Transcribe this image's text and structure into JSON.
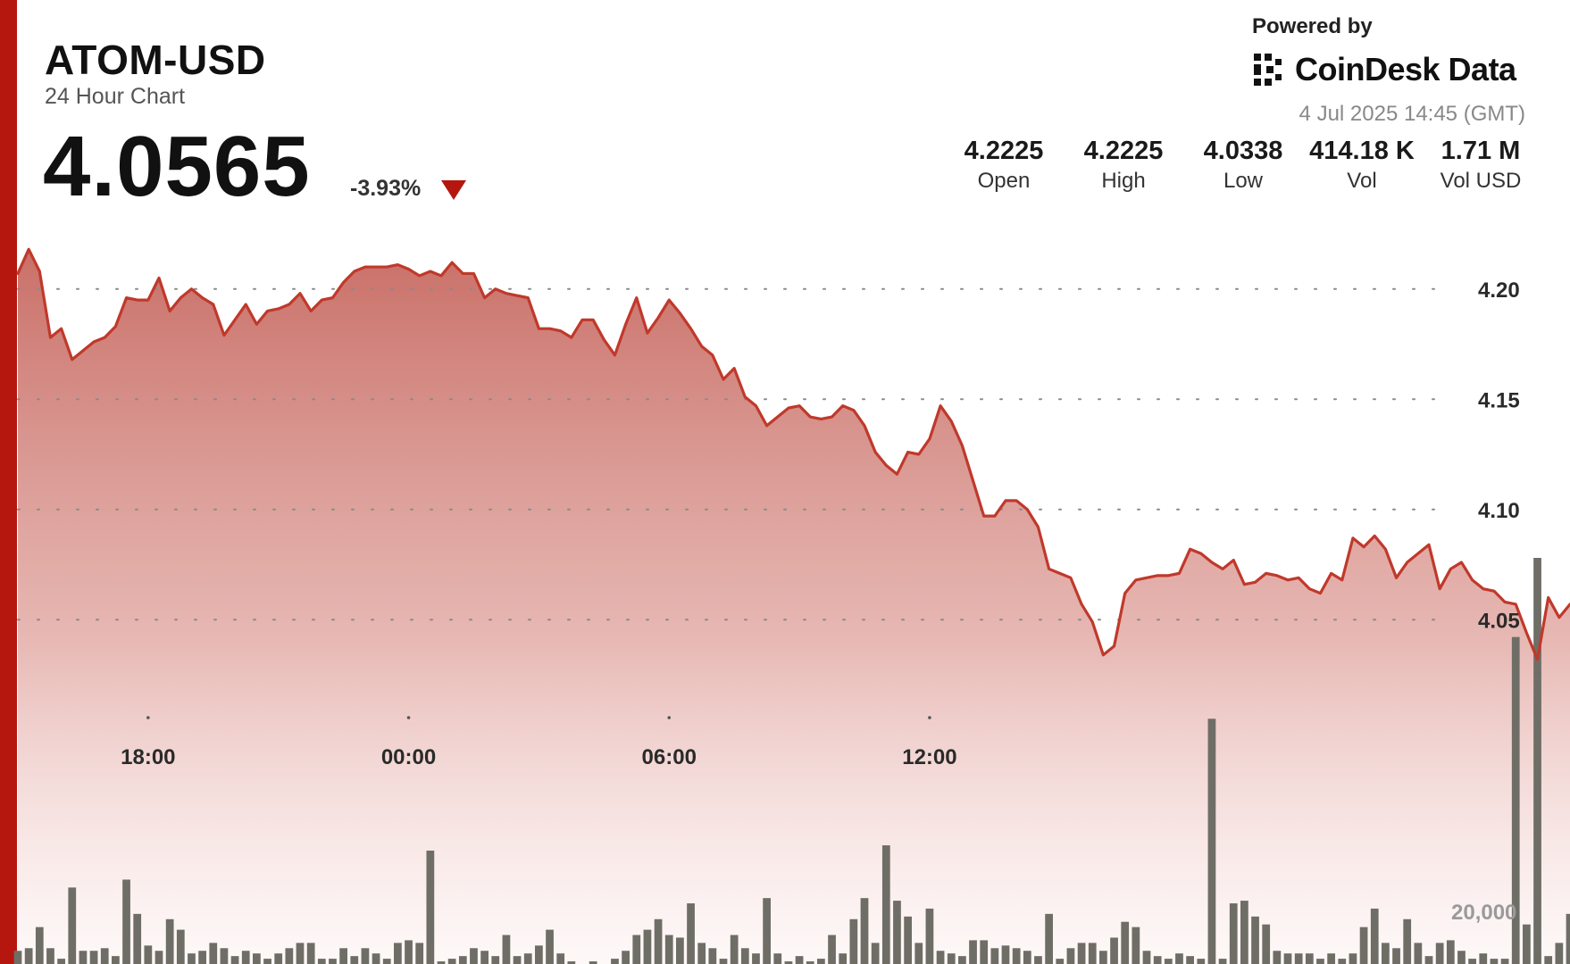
{
  "header": {
    "pair": "ATOM-USD",
    "subtitle": "24 Hour Chart",
    "price": "4.0565",
    "change": "-3.93%",
    "powered_by": "Powered by",
    "brand": "CoinDesk Data",
    "timestamp": "4 Jul 2025 14:45 (GMT)"
  },
  "stats": [
    {
      "value": "4.2225",
      "label": "Open"
    },
    {
      "value": "4.2225",
      "label": "High"
    },
    {
      "value": "4.0338",
      "label": "Low"
    },
    {
      "value": "414.18 K",
      "label": "Vol"
    },
    {
      "value": "1.71 M",
      "label": "Vol USD"
    }
  ],
  "colors": {
    "accent": "#b5170f",
    "line": "#c0392b",
    "area_top": "#c97068",
    "volume_bar": "#6f6e66"
  },
  "chart_data": {
    "type": "area",
    "series": [
      {
        "values": [
          4.207,
          4.218,
          4.208,
          4.178,
          4.182,
          4.168,
          4.172,
          4.176,
          4.178,
          4.183,
          4.196,
          4.195,
          4.195,
          4.205,
          4.19,
          4.196,
          4.2,
          4.196,
          4.193,
          4.179,
          4.186,
          4.193,
          4.184,
          4.19,
          4.191,
          4.193,
          4.198,
          4.19,
          4.195,
          4.196,
          4.203,
          4.208,
          4.21,
          4.21,
          4.21,
          4.211,
          4.209,
          4.206,
          4.208,
          4.206,
          4.212,
          4.207,
          4.207,
          4.196,
          4.2,
          4.198,
          4.197,
          4.196,
          4.182,
          4.182,
          4.181,
          4.178,
          4.186,
          4.186,
          4.177,
          4.17,
          4.184,
          4.196,
          4.18,
          4.187,
          4.195,
          4.189,
          4.182,
          4.174,
          4.17,
          4.159,
          4.164,
          4.151,
          4.147,
          4.138,
          4.142,
          4.146,
          4.147,
          4.142,
          4.141,
          4.142,
          4.147,
          4.145,
          4.138,
          4.126,
          4.12,
          4.116,
          4.126,
          4.125,
          4.132,
          4.147,
          4.14,
          4.129,
          4.113,
          4.097,
          4.097,
          4.104,
          4.104,
          4.1,
          4.092,
          4.073,
          4.071,
          4.069,
          4.057,
          4.049,
          4.034,
          4.038,
          4.062,
          4.068,
          4.069,
          4.07,
          4.07,
          4.071,
          4.082,
          4.08,
          4.076,
          4.073,
          4.077,
          4.066,
          4.067,
          4.071,
          4.07,
          4.068,
          4.069,
          4.064,
          4.062,
          4.071,
          4.068,
          4.087,
          4.083,
          4.088,
          4.082,
          4.069,
          4.076,
          4.08,
          4.084,
          4.064,
          4.073,
          4.076,
          4.068,
          4.064,
          4.063,
          4.058,
          4.057,
          4.044,
          4.032,
          4.06,
          4.051,
          4.057
        ]
      }
    ],
    "volume": [
      5000,
      6000,
      14000,
      6000,
      2000,
      29000,
      5000,
      5000,
      6000,
      3000,
      32000,
      19000,
      7000,
      5000,
      17000,
      13000,
      4000,
      5000,
      8000,
      6000,
      3000,
      5000,
      4000,
      2000,
      4000,
      6000,
      8000,
      8000,
      2000,
      2000,
      6000,
      3000,
      6000,
      4000,
      2000,
      8000,
      9000,
      8000,
      43000,
      1000,
      2000,
      3000,
      6000,
      5000,
      3000,
      11000,
      3000,
      4000,
      7000,
      13000,
      4000,
      1000,
      0,
      1000,
      0,
      2000,
      5000,
      11000,
      13000,
      17000,
      11000,
      10000,
      23000,
      8000,
      6000,
      2000,
      11000,
      6000,
      4000,
      25000,
      4000,
      1000,
      3000,
      1000,
      2000,
      11000,
      4000,
      17000,
      25000,
      8000,
      45000,
      24000,
      18000,
      8000,
      21000,
      5000,
      4000,
      3000,
      9000,
      9000,
      6000,
      7000,
      6000,
      5000,
      3000,
      19000,
      2000,
      6000,
      8000,
      8000,
      5000,
      10000,
      16000,
      14000,
      5000,
      3000,
      2000,
      4000,
      3000,
      2000,
      93000,
      2000,
      23000,
      24000,
      18000,
      15000,
      5000,
      4000,
      4000,
      4000,
      2000,
      4000,
      2000,
      4000,
      14000,
      21000,
      8000,
      6000,
      17000,
      8000,
      3000,
      8000,
      9000,
      5000,
      2000,
      4000,
      2000,
      2000,
      124000,
      15000,
      154000,
      3000,
      8000,
      19000,
      10000,
      3000,
      4000,
      4000,
      6000,
      12000,
      4000,
      3000,
      18000,
      15000,
      16000,
      11000,
      19000,
      18000,
      5000
    ],
    "x_ticks": [
      "18:00",
      "00:00",
      "06:00",
      "12:00"
    ],
    "x_tick_positions": [
      12,
      36,
      60,
      84
    ],
    "y_ticks": [
      4.05,
      4.1,
      4.15,
      4.2
    ],
    "y_tick_labels": [
      "4.05",
      "4.10",
      "4.15",
      "4.20"
    ],
    "ylim": [
      4.025,
      4.225
    ],
    "volume_tick_label": "20,000",
    "volume_tick_value": 20000,
    "volume_max": 154000,
    "grid": "dotted horizontal"
  }
}
